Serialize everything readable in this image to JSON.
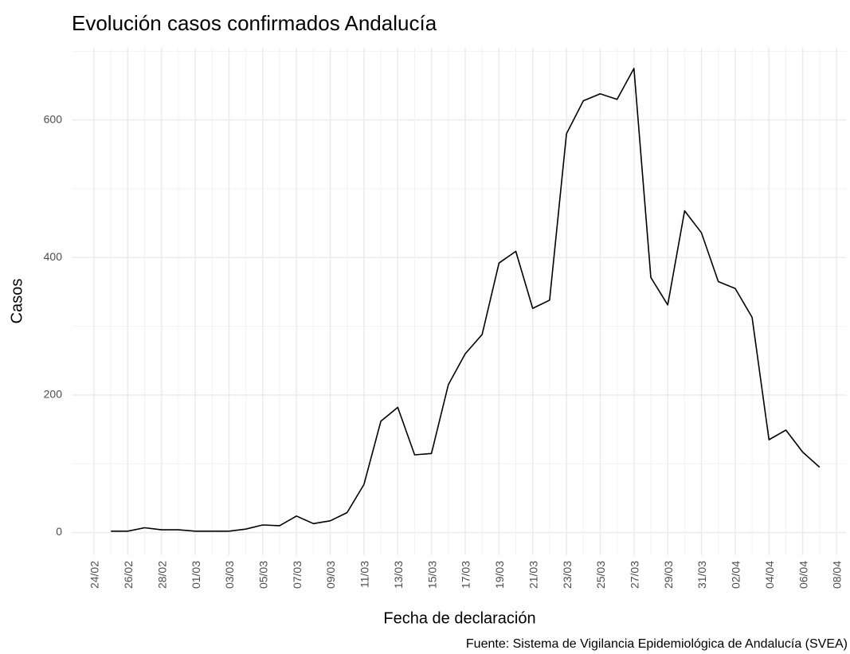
{
  "chart_data": {
    "type": "line",
    "title": "Evolución casos confirmados Andalucía",
    "x_label": "Fecha de declaración",
    "y_label": "Casos",
    "caption": "Fuente: Sistema de Vigilancia Epidemiológica de Andalucía (SVEA)",
    "categories": [
      "24/02",
      null,
      "26/02",
      null,
      "28/02",
      null,
      "01/03",
      null,
      "03/03",
      null,
      "05/03",
      null,
      "07/03",
      null,
      "09/03",
      null,
      "11/03",
      null,
      "13/03",
      null,
      "15/03",
      null,
      "17/03",
      null,
      "19/03",
      null,
      "21/03",
      null,
      "23/03",
      null,
      "25/03",
      null,
      "27/03",
      null,
      "29/03",
      null,
      "31/03",
      null,
      "02/04",
      null,
      "04/04",
      null,
      "06/04",
      null,
      "08/04"
    ],
    "series": [
      {
        "name": "Casos",
        "color": "#000000",
        "values": [
          null,
          2,
          2,
          7,
          4,
          4,
          2,
          2,
          2,
          5,
          11,
          10,
          24,
          13,
          17,
          29,
          70,
          162,
          182,
          113,
          115,
          215,
          260,
          288,
          392,
          409,
          326,
          338,
          580,
          628,
          638,
          630,
          675,
          371,
          331,
          468,
          436,
          365,
          355,
          313,
          135,
          149,
          117,
          95,
          null
        ]
      }
    ],
    "ylim": [
      -33,
      705
    ],
    "yticks": [
      0,
      200,
      400,
      600
    ],
    "grid": true
  }
}
